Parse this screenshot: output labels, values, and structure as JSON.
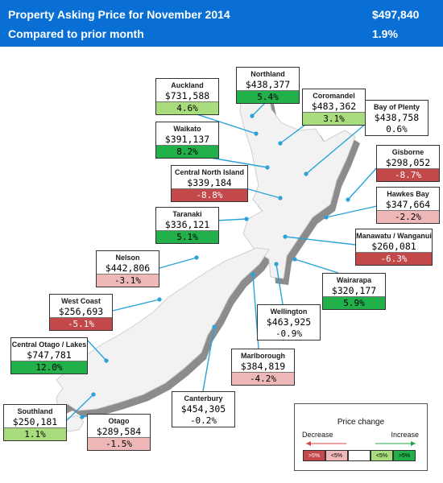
{
  "header": {
    "title": "Property Asking Price for  November 2014",
    "subtitle": "Compared to prior month",
    "national_price": "$497,840",
    "national_change": "1.9%"
  },
  "regions": [
    {
      "name": "Northland",
      "price": "$438,377",
      "change": "5.4%",
      "category": "big-inc"
    },
    {
      "name": "Auckland",
      "price": "$731,588",
      "change": "4.6%",
      "category": "small-inc"
    },
    {
      "name": "Coromandel",
      "price": "$483,362",
      "change": "3.1%",
      "category": "small-inc"
    },
    {
      "name": "Bay of Plenty",
      "price": "$438,758",
      "change": "0.6%",
      "category": "neutral"
    },
    {
      "name": "Waikato",
      "price": "$391,137",
      "change": "8.2%",
      "category": "big-inc"
    },
    {
      "name": "Gisborne",
      "price": "$298,052",
      "change": "-8.7%",
      "category": "big-dec"
    },
    {
      "name": "Central North Island",
      "price": "$339,184",
      "change": "-8.8%",
      "category": "big-dec"
    },
    {
      "name": "Hawkes Bay",
      "price": "$347,664",
      "change": "-2.2%",
      "category": "small-dec"
    },
    {
      "name": "Taranaki",
      "price": "$336,121",
      "change": "5.1%",
      "category": "big-inc"
    },
    {
      "name": "Manawatu / Wanganui",
      "price": "$260,081",
      "change": "-6.3%",
      "category": "big-dec"
    },
    {
      "name": "Nelson",
      "price": "$442,806",
      "change": "-3.1%",
      "category": "small-dec"
    },
    {
      "name": "Wairarapa",
      "price": "$320,177",
      "change": "5.9%",
      "category": "big-inc"
    },
    {
      "name": "West Coast",
      "price": "$256,693",
      "change": "-5.1%",
      "category": "big-dec"
    },
    {
      "name": "Wellington",
      "price": "$463,925",
      "change": "-0.9%",
      "category": "neutral"
    },
    {
      "name": "Central Otago / Lakes",
      "price": "$747,781",
      "change": "12.0%",
      "category": "big-inc"
    },
    {
      "name": "Marlborough",
      "price": "$384,819",
      "change": "-4.2%",
      "category": "small-dec"
    },
    {
      "name": "Canterbury",
      "price": "$454,305",
      "change": "-0.2%",
      "category": "neutral"
    },
    {
      "name": "Southland",
      "price": "$250,181",
      "change": "1.1%",
      "category": "small-inc"
    },
    {
      "name": "Otago",
      "price": "$289,584",
      "change": "-1.5%",
      "category": "small-dec"
    }
  ],
  "legend": {
    "title": "Price change",
    "decrease": "Decrease",
    "increase": "Increase",
    "swatches": [
      {
        "label": ">5%",
        "color": "#c3484a"
      },
      {
        "label": "<5%",
        "color": "#efb8b8"
      },
      {
        "label": "",
        "color": "#ffffff"
      },
      {
        "label": "<5%",
        "color": "#a9dc7c"
      },
      {
        "label": ">5%",
        "color": "#22b04b"
      }
    ]
  },
  "colors": {
    "header_bg": "#0a6fd4",
    "leader_line": "#2aa3d8",
    "land_light": "#f2f2f2",
    "land_shadow": "#8c8c8c"
  }
}
